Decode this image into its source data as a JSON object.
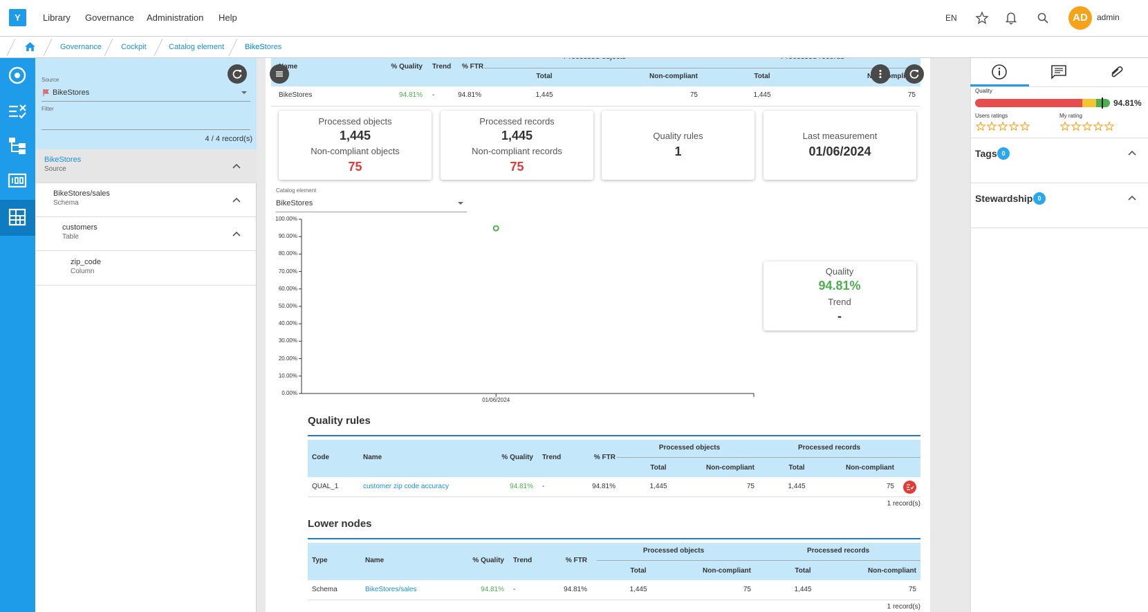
{
  "nav": {
    "logo": "Y",
    "menu": [
      "Library",
      "Governance",
      "Administration",
      "Help"
    ],
    "language": "EN",
    "avatar": "AD",
    "user": "admin"
  },
  "breadcrumb": [
    "Governance",
    "Cockpit",
    "Catalog element",
    "BikeStores"
  ],
  "left_panel": {
    "source_label": "Source",
    "source": "BikeStores",
    "filter_label": "Filter",
    "record_count": "4 / 4 record(s)",
    "tree": [
      {
        "label": "BikeStores",
        "type": "Source"
      },
      {
        "label": "BikeStores/sales",
        "type": "Schema"
      },
      {
        "label": "customers",
        "type": "Table"
      },
      {
        "label": "zip_code",
        "type": "Column"
      }
    ]
  },
  "summary": {
    "columns": [
      "Name",
      "% Quality",
      "Trend",
      "% FTR"
    ],
    "groups": [
      "Processed objects",
      "Processed records"
    ],
    "sub_columns": [
      "Total",
      "Non-compliant",
      "Total",
      "Non-compliant"
    ],
    "row": [
      "BikeStores",
      "94.81%",
      "-",
      "94.81%",
      "1,445",
      "75",
      "1,445",
      "75"
    ]
  },
  "kpis": [
    {
      "label": "Processed objects",
      "value": "1,445",
      "sub_label": "Non-compliant objects",
      "sub_value": "75"
    },
    {
      "label": "Processed records",
      "value": "1,445",
      "sub_label": "Non-compliant records",
      "sub_value": "75"
    },
    {
      "label": "Quality rules",
      "value": "1"
    },
    {
      "label": "Last measurement",
      "value": "01/06/2024"
    }
  ],
  "catalog_select": {
    "label": "Catalog element",
    "value": "BikeStores"
  },
  "chart": {
    "type": "scatter",
    "x": [
      "01/06/2024"
    ],
    "values": [
      94.81
    ],
    "color": "#4caf50",
    "ylim": [
      0,
      100
    ],
    "yticks": [
      {
        "value": 0,
        "label": "0.00%"
      },
      {
        "value": 10,
        "label": "10.00%"
      },
      {
        "value": 20,
        "label": "20.00%"
      },
      {
        "value": 30,
        "label": "30.00%"
      },
      {
        "value": 40,
        "label": "40.00%"
      },
      {
        "value": 50,
        "label": "50.00%"
      },
      {
        "value": 60,
        "label": "60.00%"
      },
      {
        "value": 70,
        "label": "70.00%"
      },
      {
        "value": 80,
        "label": "80.00%"
      },
      {
        "value": 90,
        "label": "90.00%"
      },
      {
        "value": 100,
        "label": "100.00%"
      }
    ]
  },
  "quality_card": {
    "quality_label": "Quality",
    "quality": "94.81%",
    "trend_label": "Trend",
    "trend": "-"
  },
  "quality_rules": {
    "title": "Quality rules",
    "columns": [
      "Code",
      "Name",
      "% Quality",
      "Trend",
      "% FTR"
    ],
    "groups": [
      "Processed objects",
      "Processed records"
    ],
    "sub_columns": [
      "Total",
      "Non-compliant",
      "Total",
      "Non-compliant"
    ],
    "rows": [
      [
        "QUAL_1",
        "customer zip code accuracy",
        "94.81%",
        "-",
        "94.81%",
        "1,445",
        "75",
        "1,445",
        "75"
      ]
    ],
    "footer": "1 record(s)"
  },
  "lower_nodes": {
    "title": "Lower nodes",
    "columns": [
      "Type",
      "Name",
      "% Quality",
      "Trend",
      "% FTR"
    ],
    "groups": [
      "Processed objects",
      "Processed records"
    ],
    "sub_columns": [
      "Total",
      "Non-compliant",
      "Total",
      "Non-compliant"
    ],
    "rows": [
      [
        "Schema",
        "BikeStores/sales",
        "94.81%",
        "-",
        "94.81%",
        "1,445",
        "75",
        "1,445",
        "75"
      ]
    ],
    "footer": "1 record(s)"
  },
  "right_panel": {
    "quality_label": "Quality",
    "quality": "94.81%",
    "users_ratings": "Users ratings",
    "my_rating": "My rating",
    "sections": [
      {
        "title": "Tags",
        "count": "0"
      },
      {
        "title": "Stewardship",
        "count": "0"
      }
    ]
  }
}
